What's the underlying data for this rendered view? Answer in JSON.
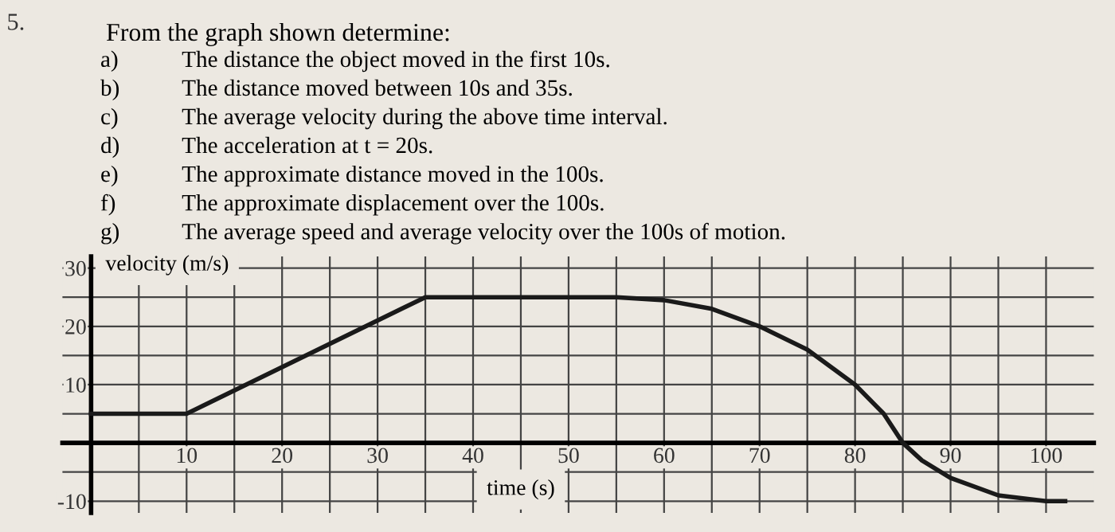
{
  "chart_data": {
    "type": "line",
    "title": "From the graph shown determine:",
    "annotations": [
      "5.",
      "a)",
      "The distance the object moved in the first 10s.",
      "b)",
      "The distance moved between 10s and 35s.",
      "c)",
      "The average velocity during the above time interval.",
      "d)",
      "The acceleration at t = 20s.",
      "e)",
      "The approximate distance moved in the 100s.",
      "f)",
      "The approximate displacement over the 100s.",
      "g)",
      "The average speed and average velocity over the 100s of motion."
    ],
    "xlabel": "time (s)",
    "ylabel": "velocity (m/s)",
    "series": [
      {
        "color": "#1a1a1a",
        "x": [
          0,
          10,
          35,
          55,
          60,
          65,
          70,
          75,
          80,
          83,
          85,
          87,
          90,
          95,
          100,
          102
        ],
        "values": [
          5,
          5,
          25,
          25,
          24.5,
          23,
          20,
          16,
          10,
          5,
          0,
          -3,
          -6,
          -9,
          -10,
          -10
        ]
      }
    ],
    "xlim": [
      -3,
      105
    ],
    "ylim": [
      -12,
      32
    ],
    "xticks": [
      {
        "value": 5,
        "label": null
      },
      10,
      {
        "value": 15,
        "label": null
      },
      20,
      {
        "value": 25,
        "label": null
      },
      30,
      {
        "value": 35,
        "label": null
      },
      40,
      {
        "value": 45,
        "label": null
      },
      50,
      {
        "value": 55,
        "label": null
      },
      60,
      {
        "value": 65,
        "label": null
      },
      70,
      {
        "value": 75,
        "label": null
      },
      80,
      {
        "value": 85,
        "label": null
      },
      90,
      {
        "value": 95,
        "label": null
      },
      100
    ],
    "yticks": [
      -10,
      {
        "value": -5,
        "label": null
      },
      {
        "value": 0,
        "label": null
      },
      {
        "value": 5,
        "label": null
      },
      10,
      {
        "value": 15,
        "label": null
      },
      20,
      {
        "value": 25,
        "label": null
      },
      30
    ],
    "grid": true,
    "marker": "none",
    "line_style": "solid"
  }
}
